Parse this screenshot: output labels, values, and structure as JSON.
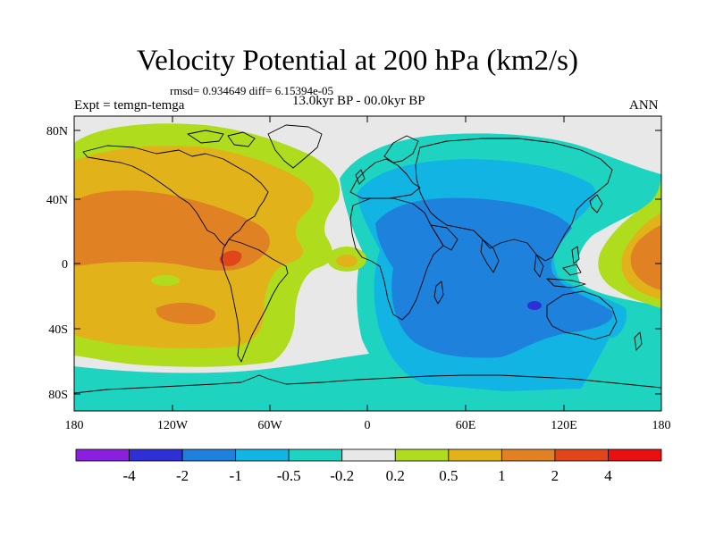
{
  "title": "Velocity Potential at 200 hPa (km2/s)",
  "subtitles": {
    "stats": "rmsd= 0.934649 diff= 6.15394e-05",
    "experiment": "Expt = temgn-temga",
    "period": "13.0kyr BP - 00.0kyr BP",
    "season": "ANN"
  },
  "axes": {
    "y_ticks": [
      "80N",
      "40N",
      "0",
      "40S",
      "80S"
    ],
    "x_ticks": [
      "180",
      "120W",
      "60W",
      "0",
      "60E",
      "120E",
      "180"
    ]
  },
  "colorbar": {
    "labels": [
      "-4",
      "-2",
      "-1",
      "-0.5",
      "-0.2",
      "0.2",
      "0.5",
      "1",
      "2",
      "4"
    ],
    "colors": [
      "#8a1fe0",
      "#2f2fd6",
      "#1e82dc",
      "#12b4e4",
      "#1ed4c0",
      "#e8e8e8",
      "#b0dc1e",
      "#e2b21a",
      "#e08224",
      "#e0461a",
      "#e81010"
    ]
  },
  "map_colors": {
    "ocean_base": "#e8e8e8",
    "pos_1": "#b0dc1e",
    "pos_2": "#e2b21a",
    "pos_3": "#e08224",
    "pos_4": "#e0461a",
    "neg_1": "#1ed4c0",
    "neg_2": "#12b4e4",
    "neg_3": "#1e82dc",
    "neg_4": "#2f2fd6",
    "coast": "#000000"
  }
}
